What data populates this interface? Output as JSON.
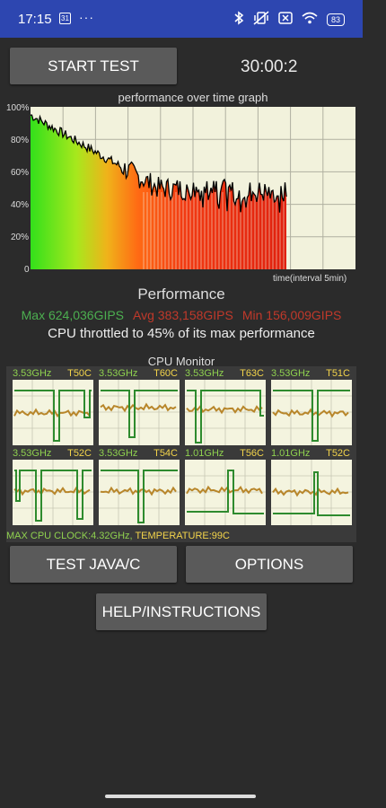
{
  "status_bar": {
    "time": "17:15",
    "calendar_day": "31",
    "more": "···",
    "battery": "83"
  },
  "controls": {
    "start_test": "START TEST",
    "timer": "30:00:2",
    "test_java_c": "TEST JAVA/C",
    "options": "OPTIONS",
    "help": "HELP/INSTRUCTIONS"
  },
  "graph": {
    "title": "performance over time graph",
    "y_ticks": [
      "100%",
      "80%",
      "60%",
      "40%",
      "20%",
      "0"
    ],
    "x_label": "time(interval 5min)"
  },
  "performance": {
    "title": "Performance",
    "max": "Max 624,036GIPS",
    "avg": "Avg 383,158GIPS",
    "min": "Min 156,009GIPS",
    "throttle_text": "CPU throttled to 45% of its max performance"
  },
  "cpu_monitor": {
    "title": "CPU Monitor",
    "cores": [
      {
        "ghz": "3.53GHz",
        "temp": "T50C"
      },
      {
        "ghz": "3.53GHz",
        "temp": "T60C"
      },
      {
        "ghz": "3.53GHz",
        "temp": "T63C"
      },
      {
        "ghz": "3.53GHz",
        "temp": "T51C"
      },
      {
        "ghz": "3.53GHz",
        "temp": "T52C"
      },
      {
        "ghz": "3.53GHz",
        "temp": "T54C"
      },
      {
        "ghz": "1.01GHz",
        "temp": "T56C"
      },
      {
        "ghz": "1.01GHz",
        "temp": "T52C"
      }
    ],
    "max_clock": "MAX CPU CLOCK:4.32GHz,",
    "temperature": "TEMPERATURE:99C"
  },
  "colors": {
    "status_bar": "#2d46b0",
    "max_color": "#4caf50",
    "avg_color": "#c0392b",
    "min_color": "#c0392b",
    "ghz_color": "#8fd14f",
    "temp_color": "#f3d44b",
    "green_line": "#2e8b2e",
    "orange_line": "#b8862a"
  }
}
